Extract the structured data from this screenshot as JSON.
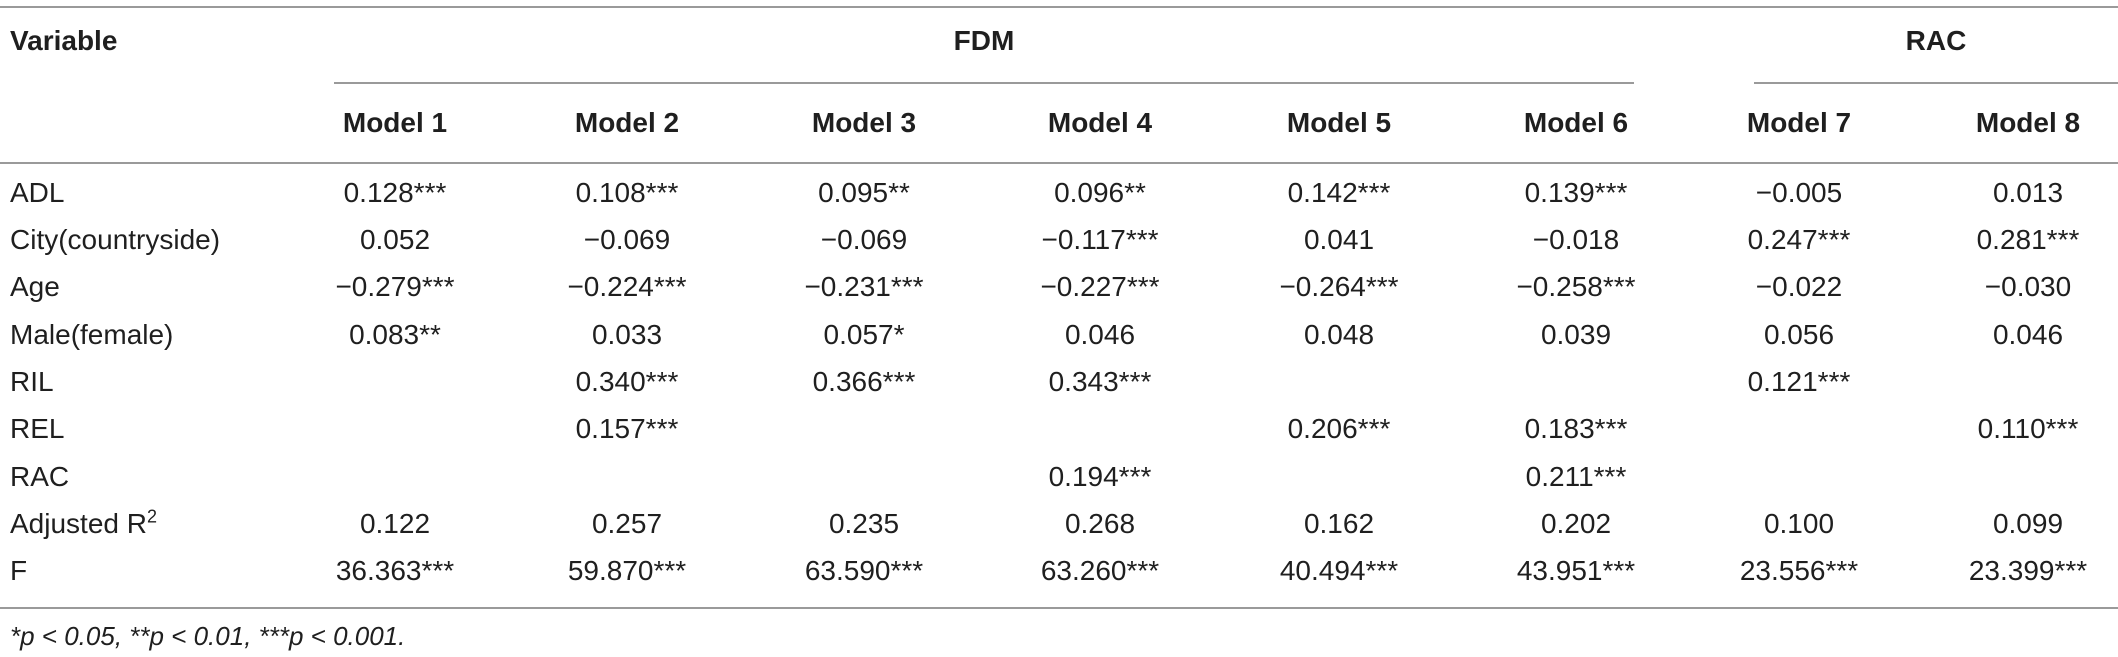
{
  "header": {
    "variable": "Variable",
    "group_fdm": "FDM",
    "group_rac": "RAC",
    "models": [
      "Model 1",
      "Model 2",
      "Model 3",
      "Model 4",
      "Model 5",
      "Model 6",
      "Model 7",
      "Model 8"
    ]
  },
  "rows": [
    {
      "label": "ADL",
      "values": [
        "0.128***",
        "0.108***",
        "0.095**",
        "0.096**",
        "0.142***",
        "0.139***",
        "−0.005",
        "0.013"
      ]
    },
    {
      "label": "City(countryside)",
      "values": [
        "0.052",
        "−0.069",
        "−0.069",
        "−0.117***",
        "0.041",
        "−0.018",
        "0.247***",
        "0.281***"
      ]
    },
    {
      "label": "Age",
      "values": [
        "−0.279***",
        "−0.224***",
        "−0.231***",
        "−0.227***",
        "−0.264***",
        "−0.258***",
        "−0.022",
        "−0.030"
      ]
    },
    {
      "label": "Male(female)",
      "values": [
        "0.083**",
        "0.033",
        "0.057*",
        "0.046",
        "0.048",
        "0.039",
        "0.056",
        "0.046"
      ]
    },
    {
      "label": "RIL",
      "values": [
        "",
        "0.340***",
        "0.366***",
        "0.343***",
        "",
        "",
        "0.121***",
        ""
      ]
    },
    {
      "label": "REL",
      "values": [
        "",
        "0.157***",
        "",
        "",
        "0.206***",
        "0.183***",
        "",
        "0.110***"
      ]
    },
    {
      "label": "RAC",
      "values": [
        "",
        "",
        "",
        "0.194***",
        "",
        "0.211***",
        "",
        ""
      ]
    },
    {
      "label": "Adjusted R",
      "label_sup": "2",
      "values": [
        "0.122",
        "0.257",
        "0.235",
        "0.268",
        "0.162",
        "0.202",
        "0.100",
        "0.099"
      ]
    },
    {
      "label": "F",
      "values": [
        "36.363***",
        "59.870***",
        "63.590***",
        "63.260***",
        "40.494***",
        "43.951***",
        "23.556***",
        "23.399***"
      ]
    }
  ],
  "footnote": "*p < 0.05, **p < 0.01, ***p < 0.001."
}
